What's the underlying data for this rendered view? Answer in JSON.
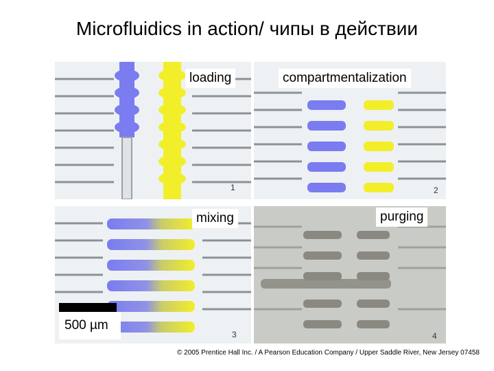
{
  "title": "Microfluidics in action/ чипы в действии",
  "panels": [
    {
      "label": "loading",
      "number": "1"
    },
    {
      "label": "compartmentalization",
      "number": "2"
    },
    {
      "label": "mixing",
      "number": "3"
    },
    {
      "label": "purging",
      "number": "4"
    }
  ],
  "scale_label": "500 µm",
  "copyright": "© 2005 Prentice Hall Inc. / A Pearson Education Company / Upper Saddle River, New Jersey 07458",
  "colors": {
    "blue_dye": "#7a7cf0",
    "yellow_dye": "#f2ee2a",
    "channel": "#d8dce0",
    "purge_gray": "#8a8880"
  }
}
